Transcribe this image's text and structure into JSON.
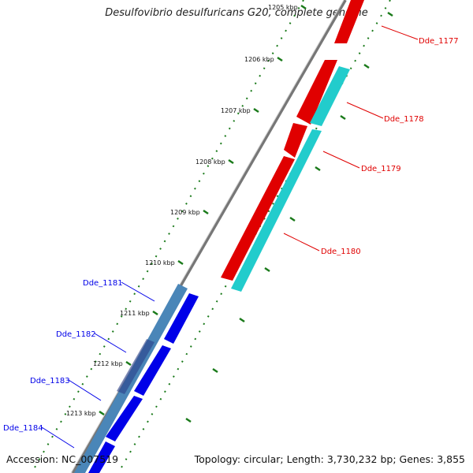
{
  "header": {
    "title": "Desulfovibrio desulfuricans G20, complete genome"
  },
  "footer": {
    "accession": "Accession: NC_007519",
    "topology": "Topology: circular; Length: 3,730,232 bp; Genes: 3,855"
  },
  "map": {
    "colors": {
      "forward_gene": "#e00000",
      "reverse_gene": "#0000e8",
      "rna_band_a": "#22cccc",
      "rna_band_b": "#4a86b8",
      "backbone": "#777777",
      "tick": "#1a7a1a"
    },
    "kbp_ticks": [
      {
        "label": "1205 kbp"
      },
      {
        "label": "1206 kbp"
      },
      {
        "label": "1207 kbp"
      },
      {
        "label": "1208 kbp"
      },
      {
        "label": "1209 kbp"
      },
      {
        "label": "1210 kbp"
      },
      {
        "label": "1211 kbp"
      },
      {
        "label": "1212 kbp"
      },
      {
        "label": "1213 kbp"
      }
    ],
    "genes": [
      {
        "name": "Dde_1177",
        "strand": "forward"
      },
      {
        "name": "Dde_1178",
        "strand": "forward"
      },
      {
        "name": "Dde_1179",
        "strand": "forward"
      },
      {
        "name": "Dde_1180",
        "strand": "forward"
      },
      {
        "name": "Dde_1181",
        "strand": "reverse"
      },
      {
        "name": "Dde_1182",
        "strand": "reverse"
      },
      {
        "name": "Dde_1183",
        "strand": "reverse"
      },
      {
        "name": "Dde_1184",
        "strand": "reverse"
      }
    ]
  }
}
